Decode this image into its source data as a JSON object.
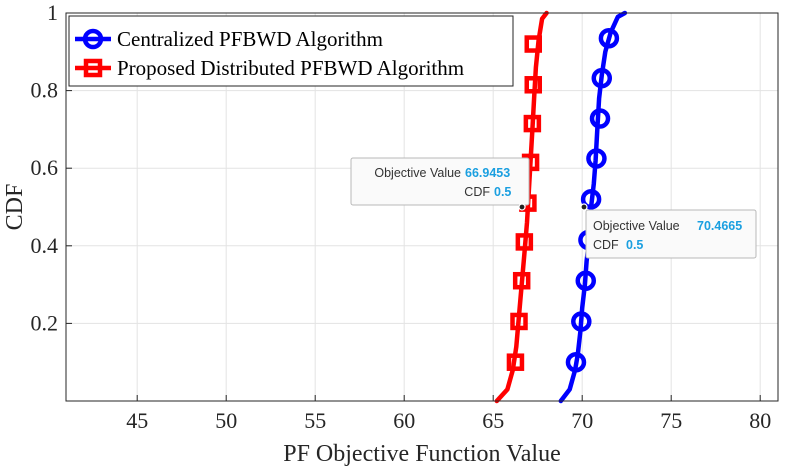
{
  "chart_data": {
    "type": "line",
    "xlabel": "PF Objective Function Value",
    "ylabel": "CDF",
    "xlim": [
      41,
      81
    ],
    "ylim": [
      0,
      1
    ],
    "xticks": [
      45,
      50,
      55,
      60,
      65,
      70,
      75,
      80
    ],
    "xtick_labels": [
      "45",
      "50",
      "55",
      "60",
      "65",
      "70",
      "75",
      "80"
    ],
    "yticks": [
      0.2,
      0.4,
      0.6,
      0.8,
      1
    ],
    "ytick_labels": [
      "0.2",
      "0.4",
      "0.6",
      "0.8",
      "1"
    ],
    "grid": true,
    "legend_position": "top-left",
    "series": [
      {
        "name": "Centralized PFBWD Algorithm",
        "color": "#0000ff",
        "marker": "circle",
        "x": [
          68.8,
          69.3,
          69.6,
          69.75,
          69.9,
          70.0,
          70.15,
          70.25,
          70.4,
          70.5,
          70.65,
          70.75,
          70.85,
          70.95,
          71.1,
          71.3,
          71.6,
          72.0,
          72.4
        ],
        "y": [
          0,
          0.03,
          0.08,
          0.12,
          0.18,
          0.24,
          0.3,
          0.36,
          0.42,
          0.5,
          0.56,
          0.62,
          0.7,
          0.78,
          0.84,
          0.9,
          0.95,
          0.99,
          1.0
        ],
        "markers_x": [
          69.65,
          69.95,
          70.2,
          70.35,
          70.5,
          70.8,
          71.0,
          71.1,
          71.5
        ],
        "markers_y": [
          0.1,
          0.205,
          0.31,
          0.415,
          0.52,
          0.625,
          0.728,
          0.832,
          0.935
        ]
      },
      {
        "name": "Proposed Distributed PFBWD Algorithm",
        "color": "#ff0000",
        "marker": "square",
        "x": [
          65.2,
          65.8,
          66.1,
          66.3,
          66.45,
          66.6,
          66.75,
          66.9,
          67.0,
          67.1,
          67.2,
          67.3,
          67.4,
          67.55,
          67.75,
          68.0
        ],
        "y": [
          0,
          0.03,
          0.08,
          0.14,
          0.22,
          0.3,
          0.38,
          0.46,
          0.54,
          0.62,
          0.7,
          0.78,
          0.86,
          0.93,
          0.985,
          1.0
        ],
        "markers_x": [
          66.25,
          66.45,
          66.6,
          66.75,
          66.95,
          67.1,
          67.2,
          67.25,
          67.25
        ],
        "markers_y": [
          0.1,
          0.205,
          0.31,
          0.41,
          0.51,
          0.615,
          0.715,
          0.815,
          0.92
        ]
      }
    ],
    "annotations": [
      {
        "point_x": 66.9453,
        "point_y": 0.5,
        "line1_label": "Objective Value",
        "line1_value": "66.9453",
        "line2_label": "CDF",
        "line2_value": "0.5",
        "placement": "upper-left of point"
      },
      {
        "point_x": 70.4665,
        "point_y": 0.5,
        "line1_label": "Objective Value",
        "line1_value": "70.4665",
        "line2_label": "CDF",
        "line2_value": "0.5",
        "placement": "lower-right of point"
      }
    ],
    "annotation_value_color": "#1a9fe0"
  }
}
